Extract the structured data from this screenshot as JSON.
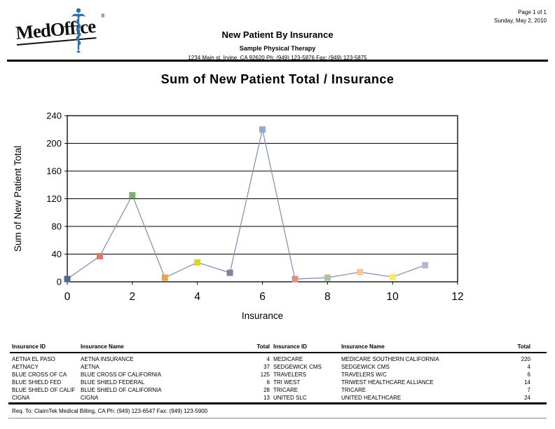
{
  "page": {
    "page_info": "Page 1 of 1",
    "date": "Sunday, May 2, 2010"
  },
  "logo": {
    "brand": "MedOffice",
    "registered": "®",
    "caduceus_color": "#2f6fb1"
  },
  "header": {
    "report_title": "New Patient By Insurance",
    "practice_name": "Sample Physical Therapy",
    "practice_address": "1234 Main st, Irvine, CA 92620 Ph: (949) 123-5876 Fax: (949) 123-5875"
  },
  "chart_data": {
    "type": "line",
    "title": "Sum of New Patient Total / Insurance",
    "xlabel": "Insurance",
    "ylabel": "Sum of New Patient Total",
    "xlim": [
      0,
      12
    ],
    "ylim": [
      0,
      240
    ],
    "x_ticks": [
      0,
      2,
      4,
      6,
      8,
      10,
      12
    ],
    "y_ticks": [
      0,
      40,
      80,
      120,
      160,
      200,
      240
    ],
    "grid": "horizontal",
    "line_color": "#8194b8",
    "x": [
      0,
      1,
      2,
      3,
      4,
      5,
      6,
      7,
      8,
      9,
      10,
      11
    ],
    "values": [
      4,
      37,
      125,
      6,
      28,
      13,
      220,
      4,
      6,
      14,
      7,
      24
    ],
    "marker_colors": [
      "#50688f",
      "#da7a6e",
      "#7aae6b",
      "#f0a23f",
      "#e3d321",
      "#8b7d9c",
      "#93a9cd",
      "#e18f8a",
      "#a9c796",
      "#fbc490",
      "#f6e96d",
      "#c0b2cf"
    ],
    "point_labels": [
      "AETNA EL PASO",
      "AETNACY",
      "BLUE CROSS OF CA",
      "BLUE SHIELD FED",
      "BLUE SHIELD OF CALIF",
      "CIGNA",
      "MEDICARE",
      "SEDGEWICK CMS",
      "TRAVELERS",
      "TRI WEST",
      "TRICARE",
      "UNITED SLC"
    ]
  },
  "table": {
    "headers": {
      "id": "Insurance ID",
      "name": "Insurance Name",
      "total": "Total"
    },
    "left_rows": [
      {
        "id": "AETNA EL PASO",
        "name": "AETNA INSURANCE",
        "total": "4"
      },
      {
        "id": "AETNACY",
        "name": "AETNA",
        "total": "37"
      },
      {
        "id": "BLUE CROSS OF CA",
        "name": "BLUE CROSS OF CALIFORNIA",
        "total": "125"
      },
      {
        "id": "BLUE SHIELD FED",
        "name": "BLUE SHIELD FEDERAL",
        "total": "6"
      },
      {
        "id": "BLUE SHIELD OF CALIF",
        "name": "BLUE SHIELD OF CALIFORNIA",
        "total": "28"
      },
      {
        "id": "CIGNA",
        "name": "CIGNA",
        "total": "13"
      }
    ],
    "right_rows": [
      {
        "id": "MEDICARE",
        "name": "MEDICARE SOUTHERN CALIFORNIA",
        "total": "220"
      },
      {
        "id": "SEDGEWICK CMS",
        "name": "SEDGEWICK CMS",
        "total": "4"
      },
      {
        "id": "TRAVELERS",
        "name": "TRAVELERS W/C",
        "total": "6"
      },
      {
        "id": "TRI WEST",
        "name": "TRIWEST HEALTHCARE ALLIANCE",
        "total": "14"
      },
      {
        "id": "TRICARE",
        "name": "TRICARE",
        "total": "7"
      },
      {
        "id": "UNITED SLC",
        "name": "UNITED HEALTHCARE",
        "total": "24"
      }
    ]
  },
  "footer": {
    "text": "Req. To: ClaimTek Medical Billing, CA Ph: (949) 123-6547 Fax: (949) 123-5900"
  }
}
